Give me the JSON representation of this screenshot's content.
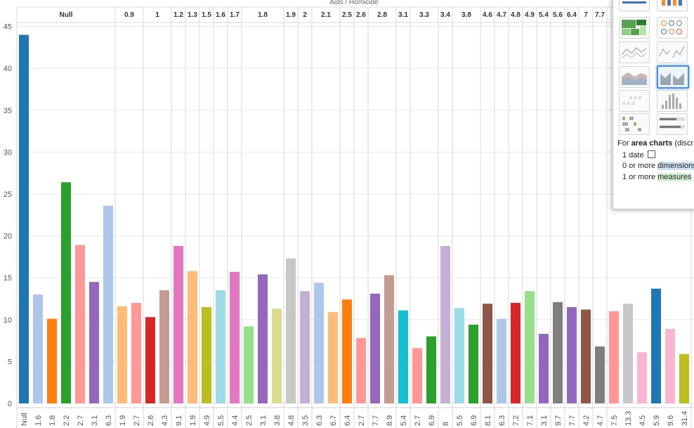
{
  "title": "Aids  /  Homicide",
  "headers": [
    "Null",
    "0.9",
    "1",
    "1.2",
    "1.3",
    "1.5",
    "1.6",
    "1.7",
    "1.8",
    "1.9",
    "2",
    "2.1",
    "2.5",
    "2.6",
    "2.8",
    "3.1",
    "3.3",
    "3.4",
    "3.8",
    "4.6",
    "4.7",
    "4.8",
    "4.9",
    "5.4",
    "5.6",
    "6.4",
    "7",
    "7.7"
  ],
  "chart_data": {
    "type": "bar",
    "ylim": [
      0,
      46
    ],
    "yticks": [
      0,
      5,
      10,
      15,
      20,
      25,
      30,
      35,
      40,
      45
    ],
    "grid": true,
    "groups": [
      {
        "header": "Null",
        "bars": [
          {
            "x": "Null",
            "v": 44.0,
            "c": "#1f77b4"
          },
          {
            "x": "1.6",
            "v": 13.0,
            "c": "#aec7e8"
          },
          {
            "x": "1.8",
            "v": 10.1,
            "c": "#ff7f0e"
          },
          {
            "x": "2.2",
            "v": 26.4,
            "c": "#2ca02c"
          },
          {
            "x": "2.7",
            "v": 18.9,
            "c": "#ff9896"
          },
          {
            "x": "3.1",
            "v": 14.5,
            "c": "#9467bd"
          },
          {
            "x": "6.3",
            "v": 23.6,
            "c": "#aec7e8"
          }
        ]
      },
      {
        "header": "0.9",
        "bars": [
          {
            "x": "1.9",
            "v": 11.6,
            "c": "#ffbb78"
          },
          {
            "x": "2.7",
            "v": 12.0,
            "c": "#ff9896"
          }
        ]
      },
      {
        "header": "1",
        "bars": [
          {
            "x": "2.6",
            "v": 10.3,
            "c": "#d62728"
          },
          {
            "x": "4.3",
            "v": 13.5,
            "c": "#c49c94"
          }
        ]
      },
      {
        "header": "1.2",
        "bars": [
          {
            "x": "9.1",
            "v": 18.8,
            "c": "#e377c2"
          }
        ]
      },
      {
        "header": "1.3",
        "bars": [
          {
            "x": "1.9",
            "v": 15.8,
            "c": "#ffbb78"
          }
        ]
      },
      {
        "header": "1.5",
        "bars": [
          {
            "x": "4.9",
            "v": 11.5,
            "c": "#bcbd22"
          }
        ]
      },
      {
        "header": "1.6",
        "bars": [
          {
            "x": "5.5",
            "v": 13.5,
            "c": "#9edae5"
          }
        ]
      },
      {
        "header": "1.7",
        "bars": [
          {
            "x": "4.4",
            "v": 15.7,
            "c": "#e377c2"
          }
        ]
      },
      {
        "header": "1.8",
        "bars": [
          {
            "x": "2.5",
            "v": 9.2,
            "c": "#98df8a"
          },
          {
            "x": "3.1",
            "v": 15.4,
            "c": "#9467bd"
          },
          {
            "x": "3.8",
            "v": 11.3,
            "c": "#dbdb8d"
          }
        ]
      },
      {
        "header": "1.9",
        "bars": [
          {
            "x": "4.8",
            "v": 17.3,
            "c": "#c7c7c7"
          }
        ]
      },
      {
        "header": "2",
        "bars": [
          {
            "x": "3.5",
            "v": 13.4,
            "c": "#c5b0d5"
          }
        ]
      },
      {
        "header": "2.1",
        "bars": [
          {
            "x": "6.3",
            "v": 14.4,
            "c": "#aec7e8"
          },
          {
            "x": "6.7",
            "v": 10.9,
            "c": "#ffbb78"
          }
        ]
      },
      {
        "header": "2.5",
        "bars": [
          {
            "x": "6.4",
            "v": 12.4,
            "c": "#ff7f0e"
          }
        ]
      },
      {
        "header": "2.6",
        "bars": [
          {
            "x": "2.7",
            "v": 7.8,
            "c": "#ff9896"
          }
        ]
      },
      {
        "header": "2.8",
        "bars": [
          {
            "x": "7.7",
            "v": 13.1,
            "c": "#9467bd"
          },
          {
            "x": "8.9",
            "v": 15.3,
            "c": "#c49c94"
          }
        ]
      },
      {
        "header": "3.1",
        "bars": [
          {
            "x": "5.4",
            "v": 11.1,
            "c": "#17becf"
          }
        ]
      },
      {
        "header": "3.3",
        "bars": [
          {
            "x": "2.7",
            "v": 6.6,
            "c": "#ff9896"
          },
          {
            "x": "6.9",
            "v": 8.0,
            "c": "#2ca02c"
          }
        ]
      },
      {
        "header": "3.4",
        "bars": [
          {
            "x": "8",
            "v": 18.8,
            "c": "#c5b0d5"
          }
        ]
      },
      {
        "header": "3.8",
        "bars": [
          {
            "x": "5.5",
            "v": 11.4,
            "c": "#9edae5"
          },
          {
            "x": "6.9",
            "v": 9.4,
            "c": "#2ca02c"
          }
        ]
      },
      {
        "header": "4.6",
        "bars": [
          {
            "x": "8.1",
            "v": 11.9,
            "c": "#8c564b"
          }
        ]
      },
      {
        "header": "4.7",
        "bars": [
          {
            "x": "6.3",
            "v": 10.1,
            "c": "#aec7e8"
          }
        ]
      },
      {
        "header": "4.8",
        "bars": [
          {
            "x": "7.2",
            "v": 12.0,
            "c": "#d62728"
          }
        ]
      },
      {
        "header": "4.9",
        "bars": [
          {
            "x": "7.1",
            "v": 13.4,
            "c": "#98df8a"
          }
        ]
      },
      {
        "header": "5.4",
        "bars": [
          {
            "x": "3.1",
            "v": 8.3,
            "c": "#9467bd"
          }
        ]
      },
      {
        "header": "5.6",
        "bars": [
          {
            "x": "9.7",
            "v": 12.1,
            "c": "#7f7f7f"
          }
        ]
      },
      {
        "header": "6.4",
        "bars": [
          {
            "x": "7.7",
            "v": 11.5,
            "c": "#9467bd"
          }
        ]
      },
      {
        "header": "7",
        "bars": [
          {
            "x": "4.2",
            "v": 11.2,
            "c": "#8c564b"
          }
        ]
      },
      {
        "header": "7.7",
        "bars": [
          {
            "x": "4.7",
            "v": 6.8,
            "c": "#7f7f7f"
          }
        ]
      },
      {
        "header": "",
        "bars": [
          {
            "x": "7.5",
            "v": 11.0,
            "c": "#ff9896"
          },
          {
            "x": "13.3",
            "v": 11.9,
            "c": "#c7c7c7"
          },
          {
            "x": "4.5",
            "v": 6.1,
            "c": "#f7b6d2"
          },
          {
            "x": "5.9",
            "v": 13.7,
            "c": "#1f77b4"
          },
          {
            "x": "9.6",
            "v": 8.9,
            "c": "#f7b6d2"
          },
          {
            "x": "31.4",
            "v": 5.9,
            "c": "#bcbd22"
          }
        ]
      }
    ]
  },
  "showme": {
    "selected": "area-charts-discrete",
    "info": {
      "prefix": "For ",
      "type_label": "area charts",
      "suffix": " (discr",
      "line1": "1 date",
      "line2_pre": "0 or more ",
      "line2_hl": "dimensions",
      "line3_pre": "1 or more ",
      "line3_hl": "measures"
    }
  }
}
